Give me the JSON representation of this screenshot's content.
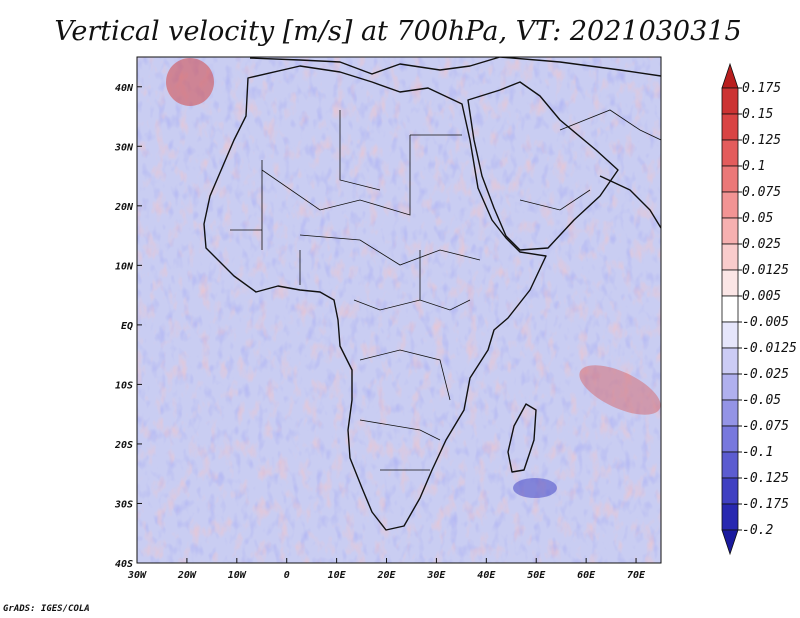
{
  "title": "Vertical velocity [m/s] at 700hPa, VT: 2021030315",
  "credit": "GrADS: IGES/COLA",
  "map": {
    "region": "Africa and surrounding oceans",
    "lon_range": [
      -30,
      75
    ],
    "lat_range": [
      -40,
      45
    ],
    "lon_ticks": [
      {
        "value": -30,
        "label": "30W"
      },
      {
        "value": -20,
        "label": "20W"
      },
      {
        "value": -10,
        "label": "10W"
      },
      {
        "value": 0,
        "label": "0"
      },
      {
        "value": 10,
        "label": "10E"
      },
      {
        "value": 20,
        "label": "20E"
      },
      {
        "value": 30,
        "label": "30E"
      },
      {
        "value": 40,
        "label": "40E"
      },
      {
        "value": 50,
        "label": "50E"
      },
      {
        "value": 60,
        "label": "60E"
      },
      {
        "value": 70,
        "label": "70E"
      }
    ],
    "lat_ticks": [
      {
        "value": 40,
        "label": "40N"
      },
      {
        "value": 30,
        "label": "30N"
      },
      {
        "value": 20,
        "label": "20N"
      },
      {
        "value": 10,
        "label": "10N"
      },
      {
        "value": 0,
        "label": "EQ"
      },
      {
        "value": -10,
        "label": "10S"
      },
      {
        "value": -20,
        "label": "20S"
      },
      {
        "value": -30,
        "label": "30S"
      },
      {
        "value": -40,
        "label": "40S"
      }
    ],
    "background_color": "#c9cdf2",
    "outline_color": "#111111"
  },
  "colorbar": {
    "labels": [
      "0.175",
      "0.15",
      "0.125",
      "0.1",
      "0.075",
      "0.05",
      "0.025",
      "0.0125",
      "0.005",
      "-0.005",
      "-0.0125",
      "-0.025",
      "-0.05",
      "-0.075",
      "-0.1",
      "-0.125",
      "-0.175",
      "-0.2"
    ],
    "colors": [
      "#b81e1e",
      "#cc3333",
      "#d94444",
      "#e35c5c",
      "#eb7878",
      "#f29494",
      "#f6b0b0",
      "#f9cccc",
      "#fbe6e6",
      "#ffffff",
      "#e6e6fb",
      "#ccccf5",
      "#b0b0ee",
      "#9494e6",
      "#7878dd",
      "#5c5cd0",
      "#4040c2",
      "#2828b0",
      "#1a1a9e"
    ]
  }
}
